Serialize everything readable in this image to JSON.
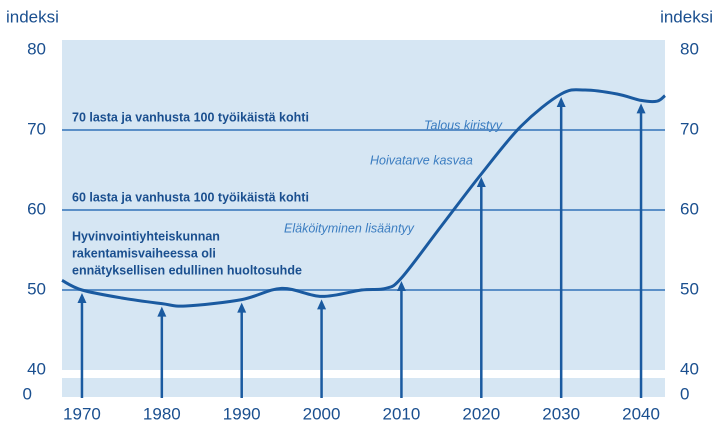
{
  "chart_data": {
    "type": "line",
    "ylabel": "indeksi",
    "y2label": "indeksi",
    "x": [
      1967.5,
      1970,
      1975,
      1980,
      1983,
      1990,
      1995,
      2000,
      2005,
      2008,
      2010,
      2015,
      2020,
      2025,
      2030,
      2033,
      2037,
      2040,
      2042,
      2043
    ],
    "series": [
      {
        "color": "#1a5aa0",
        "values": [
          51.2,
          50,
          49,
          48.3,
          48,
          48.8,
          50.2,
          49.2,
          50,
          50.2,
          51.5,
          58,
          64.5,
          70.5,
          74.5,
          75,
          74.5,
          73.7,
          73.6,
          74.3
        ]
      }
    ],
    "xlim": [
      1967.5,
      2043
    ],
    "xticks": [
      1970,
      1980,
      1990,
      2000,
      2010,
      2020,
      2030,
      2040
    ],
    "ylim": [
      40,
      80
    ],
    "yticks": [
      40,
      50,
      60,
      70,
      80
    ],
    "ybreak_tick": 0,
    "reference_lines": [
      {
        "value": 70,
        "label": "70 lasta ja vanhusta 100 työikäistä kohti"
      },
      {
        "value": 60,
        "label": "60 lasta ja vanhusta 100 työikäistä kohti"
      },
      {
        "value": 50
      }
    ],
    "note": [
      "Hyvinvointiyhteiskunnan",
      "rakentamisvaiheessa oli",
      "ennätyksellisen edullinen huoltosuhde"
    ],
    "annotations": [
      "Talous kiristyy",
      "Hoivatarve kasvaa",
      "Eläköityminen lisääntyy"
    ],
    "arrow_years": [
      1,
      3,
      5,
      7,
      10,
      12,
      14,
      17
    ]
  }
}
